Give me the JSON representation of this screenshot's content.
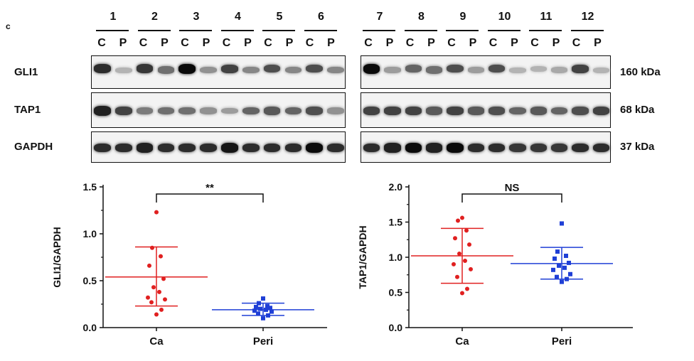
{
  "panel_letter": "c",
  "lanes": {
    "left": [
      "1",
      "2",
      "3",
      "4",
      "5",
      "6"
    ],
    "right": [
      "7",
      "8",
      "9",
      "10",
      "11",
      "12"
    ],
    "sub": [
      "C",
      "P"
    ]
  },
  "blots": [
    {
      "label": "GLI1",
      "kda": "160 kDa",
      "bands": [
        0.85,
        0.25,
        0.8,
        0.55,
        1.0,
        0.4,
        0.75,
        0.45,
        0.7,
        0.45,
        0.7,
        0.45,
        1.0,
        0.35,
        0.6,
        0.55,
        0.7,
        0.35,
        0.7,
        0.25,
        0.25,
        0.3,
        0.75,
        0.25
      ]
    },
    {
      "label": "TAP1",
      "kda": "68 kDa",
      "bands": [
        0.9,
        0.75,
        0.5,
        0.55,
        0.55,
        0.4,
        0.35,
        0.6,
        0.65,
        0.6,
        0.7,
        0.4,
        0.75,
        0.75,
        0.75,
        0.65,
        0.75,
        0.65,
        0.7,
        0.6,
        0.65,
        0.6,
        0.7,
        0.75
      ]
    },
    {
      "label": "GAPDH",
      "kda": "37 kDa",
      "bands": [
        0.85,
        0.85,
        0.9,
        0.85,
        0.85,
        0.85,
        0.95,
        0.85,
        0.85,
        0.85,
        1.0,
        0.85,
        0.85,
        0.9,
        1.0,
        0.9,
        1.0,
        0.85,
        0.85,
        0.8,
        0.8,
        0.8,
        0.85,
        0.85
      ]
    }
  ],
  "chart_data": [
    {
      "type": "scatter",
      "ylabel": "GLI1/GAPDH",
      "ylim": [
        0,
        1.5
      ],
      "yticks": [
        "0.0",
        "0.5",
        "1.0",
        "1.5"
      ],
      "categories": [
        "Ca",
        "Peri"
      ],
      "significance": "**",
      "series": [
        {
          "color": "#e02020",
          "marker": "circle",
          "values": [
            1.23,
            0.85,
            0.76,
            0.66,
            0.52,
            0.43,
            0.38,
            0.32,
            0.3,
            0.27,
            0.19,
            0.14
          ],
          "mean": 0.54,
          "sd_upper": 0.86,
          "sd_lower": 0.23
        },
        {
          "color": "#1f3fd6",
          "marker": "square",
          "values": [
            0.31,
            0.26,
            0.23,
            0.22,
            0.21,
            0.2,
            0.19,
            0.18,
            0.17,
            0.15,
            0.13,
            0.1
          ],
          "mean": 0.19,
          "sd_upper": 0.26,
          "sd_lower": 0.13
        }
      ]
    },
    {
      "type": "scatter",
      "ylabel": "TAP1/GAPDH",
      "ylim": [
        0,
        2.0
      ],
      "yticks": [
        "0.0",
        "0.5",
        "1.0",
        "1.5",
        "2.0"
      ],
      "categories": [
        "Ca",
        "Peri"
      ],
      "significance": "NS",
      "series": [
        {
          "color": "#e02020",
          "marker": "circle",
          "values": [
            1.56,
            1.52,
            1.38,
            1.27,
            1.18,
            1.05,
            0.95,
            0.9,
            0.83,
            0.72,
            0.55,
            0.49
          ],
          "mean": 1.02,
          "sd_upper": 1.41,
          "sd_lower": 0.63
        },
        {
          "color": "#1f3fd6",
          "marker": "square",
          "values": [
            1.48,
            1.08,
            1.02,
            0.98,
            0.92,
            0.88,
            0.85,
            0.82,
            0.76,
            0.72,
            0.69,
            0.65
          ],
          "mean": 0.91,
          "sd_upper": 1.14,
          "sd_lower": 0.69
        }
      ]
    }
  ]
}
